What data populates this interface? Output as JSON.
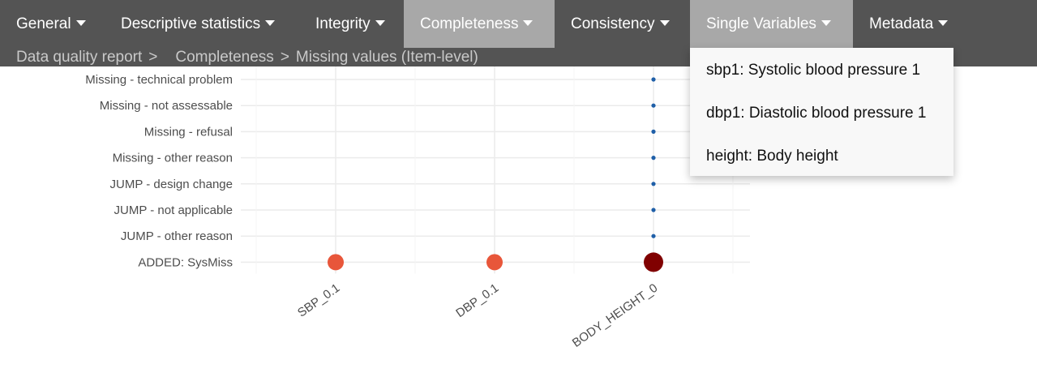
{
  "navbar": {
    "items": [
      {
        "label": "General",
        "active": false
      },
      {
        "label": "Descriptive statistics",
        "active": false
      },
      {
        "label": "Integrity",
        "active": false
      },
      {
        "label": "Completeness",
        "active": true
      },
      {
        "label": "Consistency",
        "active": false
      },
      {
        "label": "Single Variables",
        "active": true
      },
      {
        "label": "Metadata",
        "active": false
      }
    ],
    "caret_icon": "caret-down-icon"
  },
  "breadcrumb": {
    "root": "Data quality report",
    "sep1": ">",
    "section": "Completeness",
    "sep2": ">",
    "page": "Missing values (Item-level)"
  },
  "dropdown": {
    "items": [
      "sbp1: Systolic blood pressure 1",
      "dbp1: Diastolic blood pressure 1",
      "height: Body height"
    ]
  },
  "colors": {
    "navbar_bg": "#545454",
    "active_bg": "#a8a8a8",
    "breadcrumb_text": "#c9c9c9",
    "point_orange": "#e8563a",
    "point_darkred": "#800000",
    "point_blue": "#1f5fa8"
  },
  "chart_data": {
    "type": "scatter",
    "categories_x": [
      "SBP_0.1",
      "DBP_0.1",
      "BODY_HEIGHT_0"
    ],
    "categories_y": [
      "Missing - technical problem",
      "Missing - not assessable",
      "Missing - refusal",
      "Missing - other reason",
      "JUMP - design change",
      "JUMP - not applicable",
      "JUMP - other reason",
      "ADDED: SysMiss"
    ],
    "points": [
      {
        "x": "BODY_HEIGHT_0",
        "y": "Missing - technical problem",
        "level": "small",
        "color": "#1f5fa8"
      },
      {
        "x": "BODY_HEIGHT_0",
        "y": "Missing - not assessable",
        "level": "small",
        "color": "#1f5fa8"
      },
      {
        "x": "BODY_HEIGHT_0",
        "y": "Missing - refusal",
        "level": "small",
        "color": "#1f5fa8"
      },
      {
        "x": "BODY_HEIGHT_0",
        "y": "Missing - other reason",
        "level": "small",
        "color": "#1f5fa8"
      },
      {
        "x": "BODY_HEIGHT_0",
        "y": "JUMP - design change",
        "level": "small",
        "color": "#1f5fa8"
      },
      {
        "x": "BODY_HEIGHT_0",
        "y": "JUMP - not applicable",
        "level": "small",
        "color": "#1f5fa8"
      },
      {
        "x": "BODY_HEIGHT_0",
        "y": "JUMP - other reason",
        "level": "small",
        "color": "#1f5fa8"
      },
      {
        "x": "SBP_0.1",
        "y": "ADDED: SysMiss",
        "level": "medium",
        "color": "#e8563a"
      },
      {
        "x": "DBP_0.1",
        "y": "ADDED: SysMiss",
        "level": "medium",
        "color": "#e8563a"
      },
      {
        "x": "BODY_HEIGHT_0",
        "y": "ADDED: SysMiss",
        "level": "large",
        "color": "#800000"
      }
    ],
    "grid": true,
    "legend": "none"
  }
}
